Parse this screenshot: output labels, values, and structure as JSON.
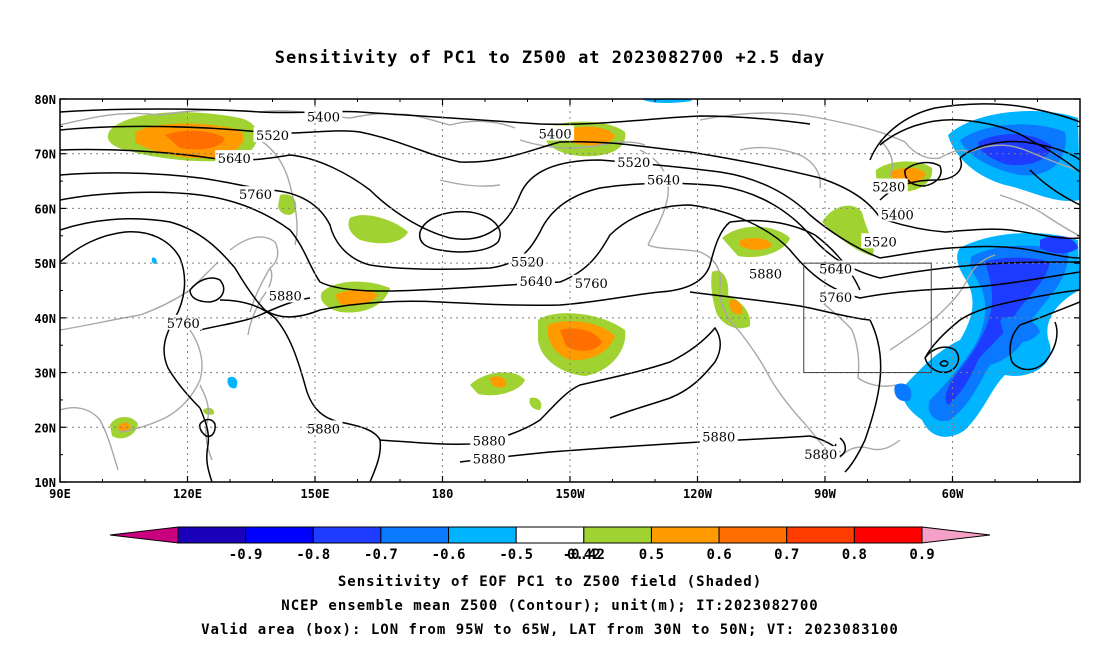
{
  "title": "Sensitivity of PC1 to Z500 at 2023082700 +2.5 day",
  "map": {
    "lat_labels": [
      "80N",
      "70N",
      "60N",
      "50N",
      "40N",
      "30N",
      "20N",
      "10N"
    ],
    "lon_labels": [
      "90E",
      "120E",
      "150E",
      "180",
      "150W",
      "120W",
      "90W",
      "60W"
    ],
    "contour_labels": [
      {
        "text": "5400",
        "lon": 152,
        "lat": 76.8
      },
      {
        "text": "5520",
        "lon": 140,
        "lat": 73.4
      },
      {
        "text": "5640",
        "lon": 131,
        "lat": 69.2
      },
      {
        "text": "5760",
        "lon": 136,
        "lat": 62.6
      },
      {
        "text": "5400",
        "lon": 206.5,
        "lat": 73.7
      },
      {
        "text": "5520",
        "lon": 225,
        "lat": 68.5
      },
      {
        "text": "5640",
        "lon": 232,
        "lat": 65.3
      },
      {
        "text": "5280",
        "lon": 285,
        "lat": 64.0
      },
      {
        "text": "5400",
        "lon": 287,
        "lat": 58.9
      },
      {
        "text": "5520",
        "lon": 283,
        "lat": 54.0
      },
      {
        "text": "5640",
        "lon": 272.5,
        "lat": 49.0
      },
      {
        "text": "5760",
        "lon": 272.5,
        "lat": 43.8
      },
      {
        "text": "5520",
        "lon": 200,
        "lat": 50.3
      },
      {
        "text": "5640",
        "lon": 202,
        "lat": 46.7
      },
      {
        "text": "5760",
        "lon": 215,
        "lat": 46.4
      },
      {
        "text": "5880",
        "lon": 256,
        "lat": 48.1
      },
      {
        "text": "5880",
        "lon": 143,
        "lat": 44.1
      },
      {
        "text": "5760",
        "lon": 119,
        "lat": 39.1
      },
      {
        "text": "5880",
        "lon": 152,
        "lat": 19.8
      },
      {
        "text": "5880",
        "lon": 191,
        "lat": 17.6
      },
      {
        "text": "5880",
        "lon": 191,
        "lat": 14.3
      },
      {
        "text": "5880",
        "lon": 245,
        "lat": 18.3
      },
      {
        "text": "5880",
        "lon": 269,
        "lat": 15.1
      }
    ],
    "valid_box": {
      "lon_from": 265,
      "lon_to": 295,
      "lat_from": 30,
      "lat_to": 50
    }
  },
  "colorbar": {
    "labels": [
      "-0.9",
      "-0.8",
      "-0.7",
      "-0.6",
      "-0.5",
      "-0.42",
      "0.42",
      "0.5",
      "0.6",
      "0.7",
      "0.8",
      "0.9"
    ],
    "colors": [
      "#c8007e",
      "#1a00b8",
      "#0000ff",
      "#1e3cff",
      "#0a78ff",
      "#00b4ff",
      "#ffffff",
      "#a0d232",
      "#ff9b00",
      "#ff6e00",
      "#ff3c00",
      "#ff0000",
      "#f5a0c8"
    ]
  },
  "captions": [
    "Sensitivity of EOF PC1 to Z500 field (Shaded)",
    "NCEP ensemble mean Z500 (Contour); unit(m); IT:2023082700",
    "Valid area (box): LON from 95W to 65W, LAT from 30N to 50N; VT: 2023083100"
  ]
}
